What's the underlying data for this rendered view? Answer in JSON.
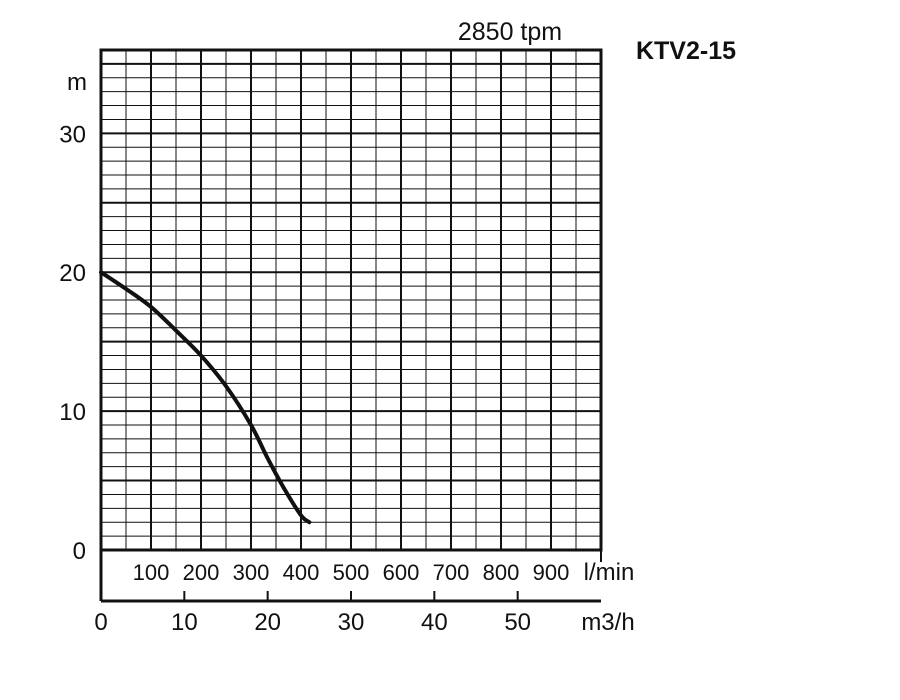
{
  "chart_data": {
    "type": "line",
    "title": "KTV2-15",
    "subtitle": "2850 tpm",
    "ylabel": "m",
    "ylim": [
      0,
      36
    ],
    "y_ticks": [
      0,
      10,
      20,
      30
    ],
    "xlim": [
      0,
      60
    ],
    "x_unit_m3h": "m3/h",
    "x_ticks_m3h": [
      0,
      10,
      20,
      30,
      40,
      50
    ],
    "x_unit_lmin": "l/min",
    "x_ticks_lmin": [
      100,
      200,
      300,
      400,
      500,
      600,
      700,
      800,
      900
    ],
    "x_ticks_lmin_values": [
      100,
      200,
      300,
      400,
      500,
      600,
      700,
      800,
      900
    ],
    "grid": true,
    "series": [
      {
        "x": [
          0,
          3,
          6,
          9,
          12,
          15,
          18,
          20,
          22,
          24,
          25
        ],
        "y": [
          20,
          18.8,
          17.5,
          15.8,
          14,
          11.8,
          9,
          6.6,
          4.4,
          2.5,
          2
        ]
      }
    ]
  }
}
